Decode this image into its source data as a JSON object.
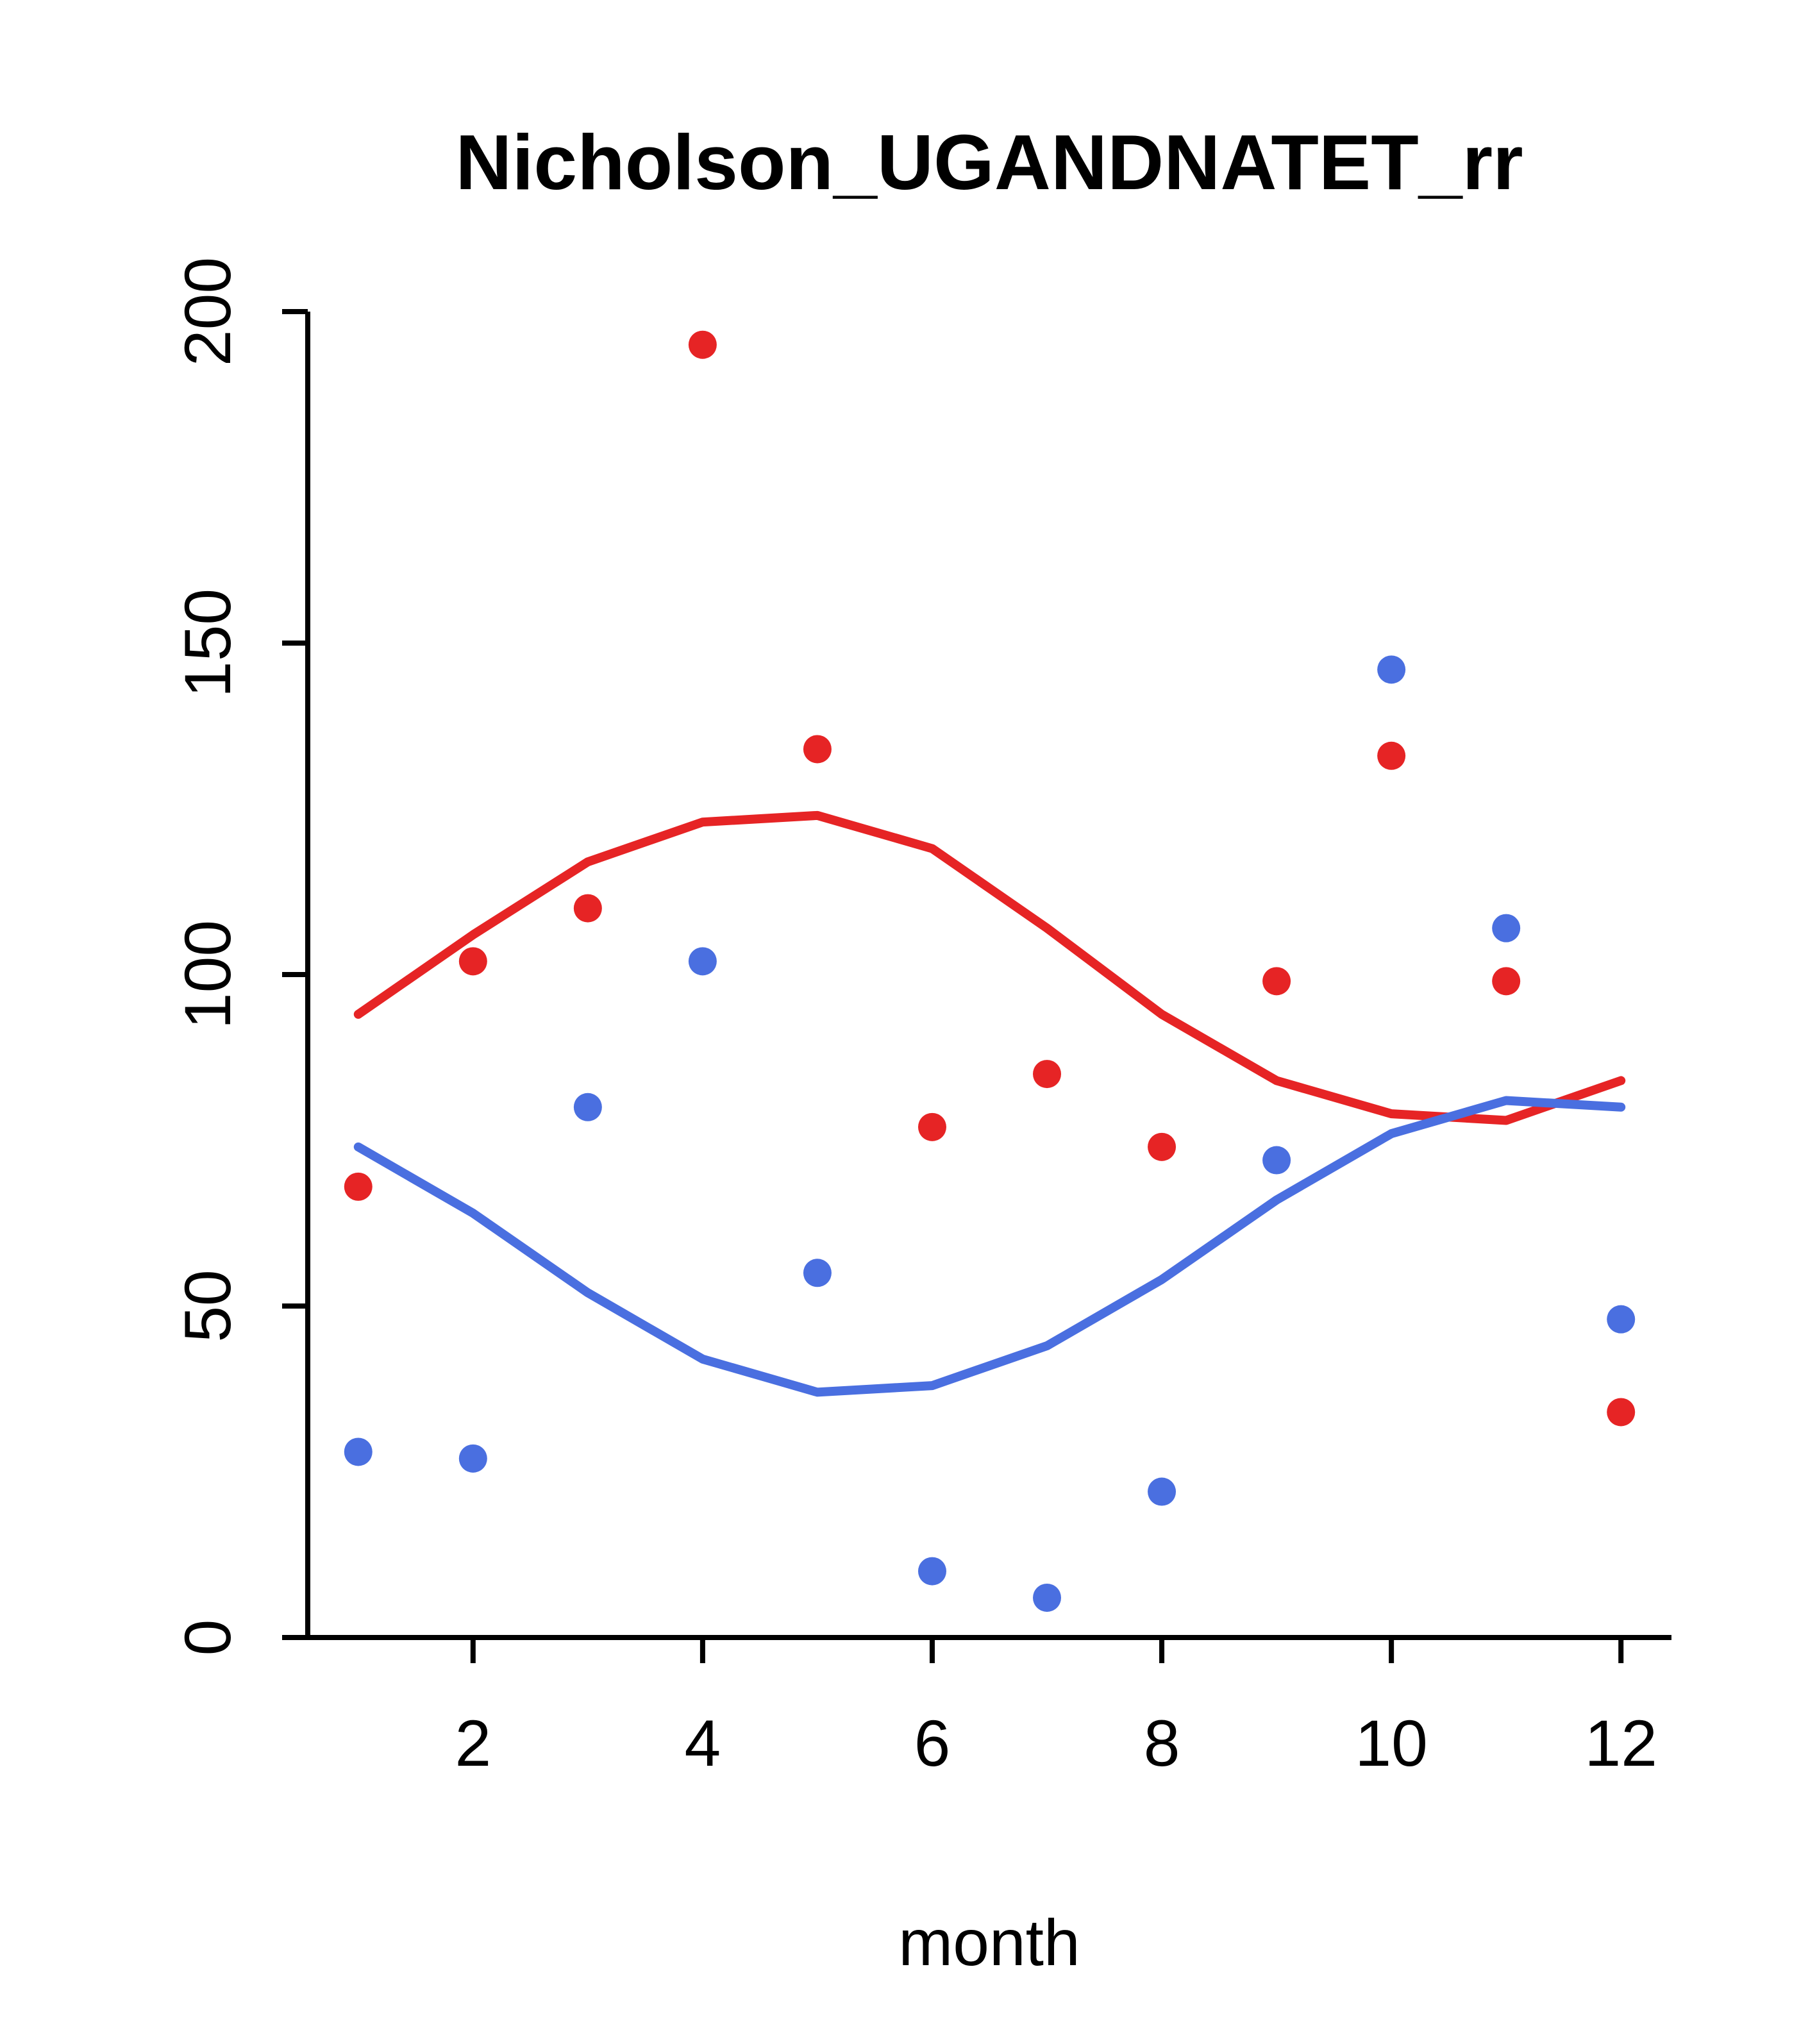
{
  "figure": {
    "background": "#ffffff",
    "axis_color": "#000000"
  },
  "chart_data": {
    "type": "scatter",
    "title": "Nicholson_UGANDNATET_rr",
    "xlabel": "month",
    "ylabel": "",
    "x": [
      1,
      2,
      3,
      4,
      5,
      6,
      7,
      8,
      9,
      10,
      11,
      12
    ],
    "xticks": [
      2,
      4,
      6,
      8,
      10,
      12
    ],
    "yticks": [
      0,
      50,
      100,
      150,
      200
    ],
    "xlim": [
      0.56,
      12.44
    ],
    "ylim": [
      0,
      200
    ],
    "grid": false,
    "legend_position": "none",
    "series": [
      {
        "name": "red-points",
        "type": "scatter",
        "color": "#e62425",
        "marker": "filled-circle",
        "values": [
          68,
          102,
          110,
          195,
          134,
          77,
          85,
          74,
          99,
          133,
          99,
          34
        ]
      },
      {
        "name": "blue-points",
        "type": "scatter",
        "color": "#4a6fe0",
        "marker": "filled-circle",
        "values": [
          28,
          27,
          80,
          102,
          55,
          10,
          6,
          22,
          72,
          146,
          107,
          48
        ]
      },
      {
        "name": "red-seasonal-fit-line",
        "type": "line",
        "color": "#e62425",
        "values": [
          94,
          106,
          117,
          123,
          124,
          119,
          107,
          94,
          84,
          79,
          78,
          84
        ]
      },
      {
        "name": "blue-seasonal-fit-line",
        "type": "line",
        "color": "#4a6fe0",
        "values": [
          74,
          64,
          52,
          42,
          37,
          38,
          44,
          54,
          66,
          76,
          81,
          80
        ]
      }
    ]
  }
}
